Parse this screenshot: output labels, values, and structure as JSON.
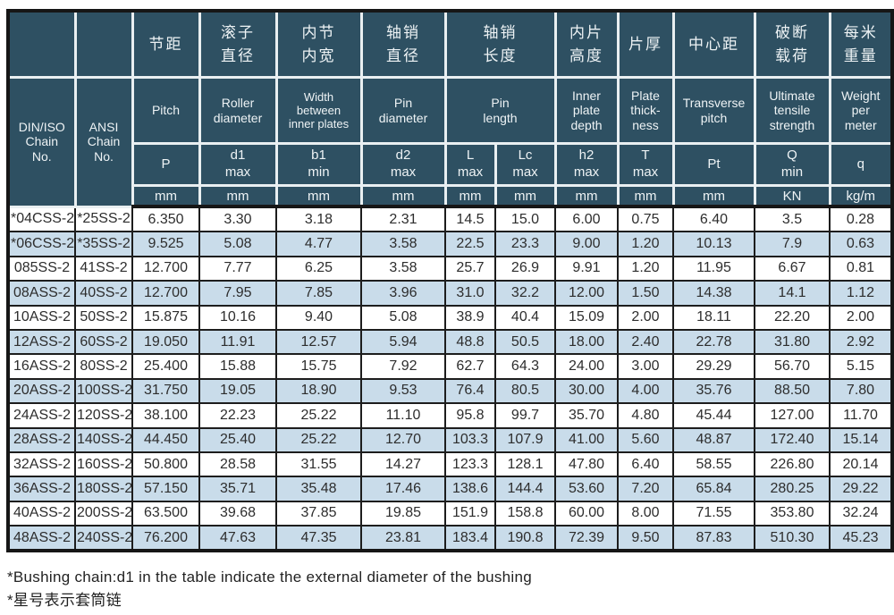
{
  "colors": {
    "header_bg": "#2e5062",
    "header_text": "#eef3f5",
    "row_alt_bg": "#c9dcea",
    "grid_dark": "#1d1d1d",
    "grid_light": "#e9eff1",
    "data_text": "#2d2d2d"
  },
  "table": {
    "din_header": "DIN/ISO\nChain\nNo.",
    "ansi_header": "ANSI\nChain\nNo.",
    "col_cn": [
      "节距",
      "滚子\n直径",
      "内节\n内宽",
      "轴销\n直径",
      "轴销\n长度",
      "内片\n高度",
      "片厚",
      "中心距",
      "破断\n载荷",
      "每米\n重量"
    ],
    "col_en": [
      "Pitch",
      "Roller\ndiameter",
      "Width\nbetween\ninner plates",
      "Pin\ndiameter",
      "Pin\nlength",
      "Inner\nplate\ndepth",
      "Plate\nthick-\nness",
      "Transverse\npitch",
      "Ultimate\ntensile\nstrength",
      "Weight\nper\nmeter"
    ],
    "col_sym": [
      "P",
      "d1\nmax",
      "b1\nmin",
      "d2\nmax",
      "L\nmax",
      "Lc\nmax",
      "h2\nmax",
      "T\nmax",
      "Pt",
      "Q\nmin",
      "q"
    ],
    "col_unit": [
      "mm",
      "mm",
      "mm",
      "mm",
      "mm",
      "mm",
      "mm",
      "mm",
      "mm",
      "KN",
      "kg/m"
    ],
    "rows": [
      [
        "*04CSS-2",
        "*25SS-2",
        "6.350",
        "3.30",
        "3.18",
        "2.31",
        "14.5",
        "15.0",
        "6.00",
        "0.75",
        "6.40",
        "3.5",
        "0.28"
      ],
      [
        "*06CSS-2",
        "*35SS-2",
        "9.525",
        "5.08",
        "4.77",
        "3.58",
        "22.5",
        "23.3",
        "9.00",
        "1.20",
        "10.13",
        "7.9",
        "0.63"
      ],
      [
        "085SS-2",
        "41SS-2",
        "12.700",
        "7.77",
        "6.25",
        "3.58",
        "25.7",
        "26.9",
        "9.91",
        "1.20",
        "11.95",
        "6.67",
        "0.81"
      ],
      [
        "08ASS-2",
        "40SS-2",
        "12.700",
        "7.95",
        "7.85",
        "3.96",
        "31.0",
        "32.2",
        "12.00",
        "1.50",
        "14.38",
        "14.1",
        "1.12"
      ],
      [
        "10ASS-2",
        "50SS-2",
        "15.875",
        "10.16",
        "9.40",
        "5.08",
        "38.9",
        "40.4",
        "15.09",
        "2.00",
        "18.11",
        "22.20",
        "2.00"
      ],
      [
        "12ASS-2",
        "60SS-2",
        "19.050",
        "11.91",
        "12.57",
        "5.94",
        "48.8",
        "50.5",
        "18.00",
        "2.40",
        "22.78",
        "31.80",
        "2.92"
      ],
      [
        "16ASS-2",
        "80SS-2",
        "25.400",
        "15.88",
        "15.75",
        "7.92",
        "62.7",
        "64.3",
        "24.00",
        "3.00",
        "29.29",
        "56.70",
        "5.15"
      ],
      [
        "20ASS-2",
        "100SS-2",
        "31.750",
        "19.05",
        "18.90",
        "9.53",
        "76.4",
        "80.5",
        "30.00",
        "4.00",
        "35.76",
        "88.50",
        "7.80"
      ],
      [
        "24ASS-2",
        "120SS-2",
        "38.100",
        "22.23",
        "25.22",
        "11.10",
        "95.8",
        "99.7",
        "35.70",
        "4.80",
        "45.44",
        "127.00",
        "11.70"
      ],
      [
        "28ASS-2",
        "140SS-2",
        "44.450",
        "25.40",
        "25.22",
        "12.70",
        "103.3",
        "107.9",
        "41.00",
        "5.60",
        "48.87",
        "172.40",
        "15.14"
      ],
      [
        "32ASS-2",
        "160SS-2",
        "50.800",
        "28.58",
        "31.55",
        "14.27",
        "123.3",
        "128.1",
        "47.80",
        "6.40",
        "58.55",
        "226.80",
        "20.14"
      ],
      [
        "36ASS-2",
        "180SS-2",
        "57.150",
        "35.71",
        "35.48",
        "17.46",
        "138.6",
        "144.4",
        "53.60",
        "7.20",
        "65.84",
        "280.25",
        "29.22"
      ],
      [
        "40ASS-2",
        "200SS-2",
        "63.500",
        "39.68",
        "37.85",
        "19.85",
        "151.9",
        "158.8",
        "60.00",
        "8.00",
        "71.55",
        "353.80",
        "32.24"
      ],
      [
        "48ASS-2",
        "240SS-2",
        "76.200",
        "47.63",
        "47.35",
        "23.81",
        "183.4",
        "190.8",
        "72.39",
        "9.50",
        "87.83",
        "510.30",
        "45.23"
      ]
    ]
  },
  "notes": {
    "line1": "*Bushing chain:d1 in the table indicate the external diameter of the bushing",
    "line2": "*星号表示套筒链"
  }
}
